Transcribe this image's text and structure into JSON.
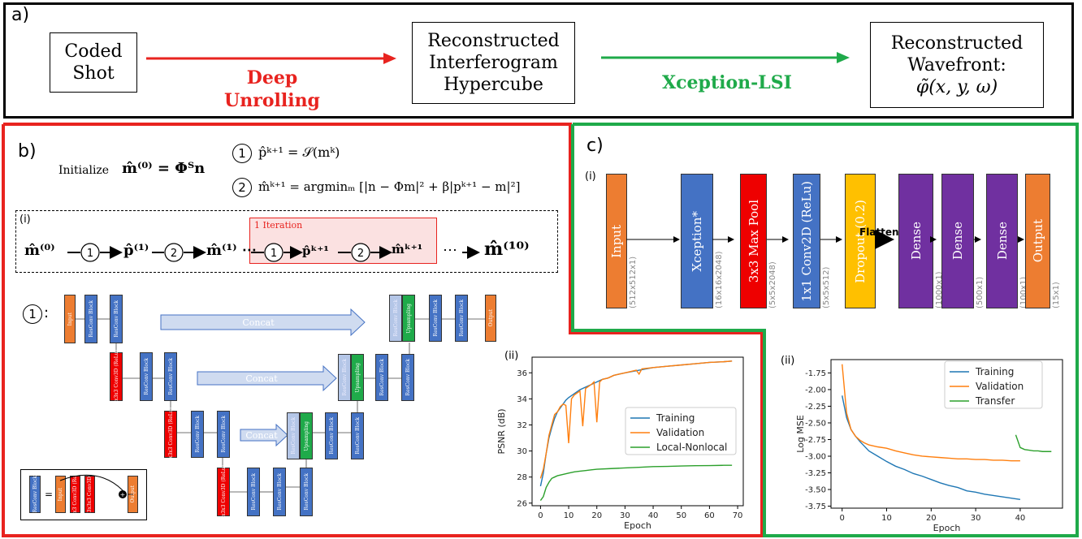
{
  "panel_a": {
    "label": "a)",
    "coded_shot": [
      "Coded",
      "Shot"
    ],
    "arrow1_label": [
      "Deep",
      "Unrolling"
    ],
    "hypercube": [
      "Reconstructed",
      "Interferogram",
      "Hypercube"
    ],
    "arrow2_label": "Xception-LSI",
    "wavefront": [
      "Reconstructed",
      "Wavefront:",
      "φ̃(x, y, ω)"
    ],
    "colors": {
      "red": "#e8231f",
      "green": "#1faa4a"
    }
  },
  "panel_b": {
    "label": "b)",
    "initialize_text": "Initialize",
    "init_formula": "m̂⁽⁰⁾ = Φᵀn",
    "step1_num": "1",
    "step1_formula": "p̂ᵏ⁺¹ = 𝒮(mᵏ)",
    "step2_num": "2",
    "step2_formula": "m̂ᵏ⁺¹ = argminₘ [|n − Φm|² + β|pᵏ⁺¹ − m|²]",
    "sub_i": "(i)",
    "iteration_label": "1 Iteration",
    "chain": [
      "m̂⁽⁰⁾",
      "p̂⁽¹⁾",
      "m̂⁽¹⁾ ⋯",
      "p̂ᵏ⁺¹",
      "m̂ᵏ⁺¹",
      "⋯",
      "m̂⁽¹⁰⁾"
    ],
    "unet_label": "1",
    "unet_colon": ":",
    "concat": "Concat",
    "input": "Input",
    "output": "Output",
    "resconv": "ResConv Block",
    "conv3d": "3x3x3 Conv3D (ReLu)",
    "upsampling": "Upsampling",
    "legend_conv3d": "3x3x3 Conv3D (ReLu)",
    "legend_conv3d_b": "3x3x3 Conv3D",
    "equals": "="
  },
  "panel_c": {
    "label": "c)",
    "sub_i": "(i)",
    "blocks": [
      {
        "name": "Input",
        "dim": "(512x512x1)",
        "color": "#ed7d31"
      },
      {
        "name": "Xception*",
        "dim": "(16x16x2048)",
        "color": "#4472c4"
      },
      {
        "name": "3x3 Max Pool",
        "dim": "(5x5x2048)",
        "color": "#ee0000"
      },
      {
        "name": "1x1 Conv2D (ReLu)",
        "dim": "(5x5x512)",
        "color": "#4472c4"
      },
      {
        "name": "Dropout (0.2)",
        "dim": "",
        "color": "#ffc000"
      },
      {
        "name": "Dense",
        "dim": "(1000x1)",
        "color": "#7030a0"
      },
      {
        "name": "Dense",
        "dim": "(500x1)",
        "color": "#7030a0"
      },
      {
        "name": "Dense",
        "dim": "(100x1)",
        "color": "#7030a0"
      },
      {
        "name": "Output",
        "dim": "(15x1)",
        "color": "#ed7d31"
      }
    ],
    "flatten": "Flatten"
  },
  "chart_b": {
    "label": "(ii)",
    "xlabel": "Epoch",
    "ylabel": "PSNR (dB)",
    "xticks": [
      "0",
      "10",
      "20",
      "30",
      "40",
      "50",
      "60",
      "70"
    ],
    "yticks": [
      "26",
      "28",
      "30",
      "32",
      "34",
      "36"
    ],
    "legend": [
      "Training",
      "Validation",
      "Local-Nonlocal"
    ]
  },
  "chart_c": {
    "label": "(ii)",
    "xlabel": "Epoch",
    "ylabel": "Log MSE",
    "xticks": [
      "0",
      "10",
      "20",
      "30",
      "40"
    ],
    "yticks": [
      "-1.75",
      "-2.00",
      "-2.25",
      "-2.50",
      "-2.75",
      "-3.00",
      "-3.25",
      "-3.50",
      "-3.75"
    ],
    "legend": [
      "Training",
      "Validation",
      "Transfer"
    ]
  },
  "chart_data": [
    {
      "type": "line",
      "xlabel": "Epoch",
      "ylabel": "PSNR (dB)",
      "xlim": [
        -3,
        72
      ],
      "ylim": [
        25.8,
        37.2
      ],
      "legend_position": "right",
      "grid": false,
      "series": [
        {
          "name": "Training",
          "color": "#1f77b4",
          "x": [
            0,
            1,
            2,
            3,
            4,
            5,
            6,
            7,
            8,
            9,
            10,
            12,
            14,
            16,
            18,
            20,
            22,
            24,
            26,
            28,
            30,
            35,
            40,
            45,
            50,
            55,
            60,
            65,
            68
          ],
          "y": [
            27.3,
            28.3,
            29.8,
            31.0,
            31.8,
            32.5,
            33.0,
            33.3,
            33.6,
            33.9,
            34.1,
            34.4,
            34.7,
            34.9,
            35.1,
            35.3,
            35.5,
            35.6,
            35.8,
            35.9,
            36.0,
            36.2,
            36.4,
            36.5,
            36.6,
            36.7,
            36.8,
            36.85,
            36.9
          ]
        },
        {
          "name": "Validation",
          "color": "#ff7f0e",
          "x": [
            0,
            1,
            2,
            3,
            4,
            5,
            6,
            7,
            8,
            9,
            10,
            11,
            12,
            14,
            15,
            16,
            18,
            19,
            20,
            21,
            22,
            24,
            26,
            28,
            30,
            32,
            34,
            35,
            36,
            40,
            45,
            50,
            55,
            60,
            65,
            68
          ],
          "y": [
            27.9,
            28.6,
            29.8,
            31.2,
            32.0,
            32.8,
            33.0,
            33.4,
            33.6,
            33.5,
            30.6,
            34.0,
            34.3,
            34.6,
            31.9,
            34.8,
            35.1,
            35.3,
            32.2,
            35.3,
            35.5,
            35.6,
            35.8,
            35.9,
            36.0,
            36.1,
            36.2,
            35.9,
            36.3,
            36.4,
            36.5,
            36.6,
            36.7,
            36.8,
            36.85,
            36.9
          ]
        },
        {
          "name": "Local-Nonlocal",
          "color": "#2ca02c",
          "x": [
            0,
            1,
            2,
            3,
            4,
            5,
            6,
            8,
            10,
            12,
            14,
            16,
            18,
            20,
            25,
            30,
            35,
            40,
            45,
            50,
            55,
            60,
            65,
            68
          ],
          "y": [
            26.2,
            26.5,
            27.2,
            27.6,
            27.9,
            28.0,
            28.1,
            28.2,
            28.3,
            28.4,
            28.45,
            28.5,
            28.55,
            28.6,
            28.65,
            28.7,
            28.75,
            28.8,
            28.82,
            28.85,
            28.87,
            28.88,
            28.9,
            28.9
          ]
        }
      ]
    },
    {
      "type": "line",
      "xlabel": "Epoch",
      "ylabel": "Log MSE",
      "xlim": [
        -2.5,
        49.5
      ],
      "ylim": [
        -3.78,
        -1.55
      ],
      "legend_position": "top-right",
      "grid": false,
      "series": [
        {
          "name": "Training",
          "color": "#1f77b4",
          "x": [
            0,
            1,
            2,
            3,
            4,
            5,
            6,
            8,
            10,
            12,
            14,
            16,
            18,
            20,
            22,
            24,
            26,
            28,
            30,
            32,
            34,
            36,
            38,
            40
          ],
          "y": [
            -2.09,
            -2.42,
            -2.6,
            -2.7,
            -2.78,
            -2.85,
            -2.92,
            -3.0,
            -3.08,
            -3.15,
            -3.2,
            -3.26,
            -3.3,
            -3.35,
            -3.4,
            -3.44,
            -3.47,
            -3.52,
            -3.54,
            -3.57,
            -3.59,
            -3.61,
            -3.63,
            -3.65
          ]
        },
        {
          "name": "Validation",
          "color": "#ff7f0e",
          "x": [
            0,
            1,
            2,
            3,
            4,
            5,
            6,
            8,
            10,
            12,
            14,
            16,
            18,
            20,
            22,
            24,
            26,
            28,
            30,
            32,
            34,
            36,
            38,
            40
          ],
          "y": [
            -1.62,
            -2.35,
            -2.6,
            -2.7,
            -2.76,
            -2.8,
            -2.83,
            -2.86,
            -2.88,
            -2.92,
            -2.95,
            -2.98,
            -3.0,
            -3.01,
            -3.02,
            -3.03,
            -3.04,
            -3.04,
            -3.05,
            -3.05,
            -3.06,
            -3.06,
            -3.07,
            -3.07
          ]
        },
        {
          "name": "Transfer",
          "color": "#2ca02c",
          "x": [
            39,
            40,
            41,
            42,
            43,
            44,
            45,
            46,
            47
          ],
          "y": [
            -2.68,
            -2.87,
            -2.9,
            -2.91,
            -2.92,
            -2.92,
            -2.93,
            -2.93,
            -2.93
          ]
        }
      ]
    }
  ]
}
